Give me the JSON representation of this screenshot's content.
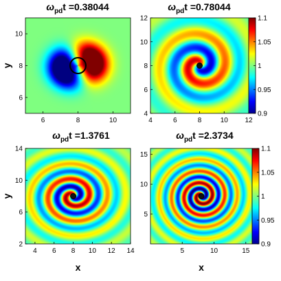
{
  "chart_data": [
    {
      "type": "heatmap",
      "title": "ω_pd t =0.38044",
      "title_parts": {
        "omega": "ω",
        "sub": "pd",
        "rest": "t =0.38044"
      },
      "xlabel": "",
      "ylabel": "y",
      "xlim": [
        5,
        11
      ],
      "ylim": [
        5,
        11
      ],
      "x_ticks": [
        "6",
        "8",
        "10"
      ],
      "x_tick_values": [
        6,
        8,
        10
      ],
      "y_ticks": [
        "6",
        "8",
        "10"
      ],
      "y_tick_values": [
        6,
        8,
        10
      ],
      "center": [
        8,
        8
      ],
      "pattern": "dipole",
      "spiral_turns": 0,
      "core_ring": true,
      "colorbar": null
    },
    {
      "type": "heatmap",
      "title": "ω_pd t =0.78044",
      "title_parts": {
        "omega": "ω",
        "sub": "pd",
        "rest": "t =0.78044"
      },
      "xlabel": "",
      "ylabel": "",
      "xlim": [
        4,
        12
      ],
      "ylim": [
        4,
        12
      ],
      "x_ticks": [
        "4",
        "6",
        "8",
        "10",
        "12"
      ],
      "x_tick_values": [
        4,
        6,
        8,
        10,
        12
      ],
      "y_ticks": [
        "4",
        "6",
        "8",
        "10",
        "12"
      ],
      "y_tick_values": [
        4,
        6,
        8,
        10,
        12
      ],
      "center": [
        8,
        8
      ],
      "pattern": "spiral",
      "spiral_turns": 1,
      "core_ring": true,
      "colorbar": {
        "range": [
          0.9,
          1.1
        ],
        "ticks": [
          "1.1",
          "1.05",
          "1",
          "0.95",
          "0.9"
        ],
        "tick_values": [
          1.1,
          1.05,
          1.0,
          0.95,
          0.9
        ]
      }
    },
    {
      "type": "heatmap",
      "title": "ω_pd t =1.3761",
      "title_parts": {
        "omega": "ω",
        "sub": "pd",
        "rest": "t =1.3761"
      },
      "xlabel": "x",
      "ylabel": "y",
      "xlim": [
        3,
        14
      ],
      "ylim": [
        2,
        14
      ],
      "x_ticks": [
        "4",
        "6",
        "8",
        "10",
        "12",
        "14"
      ],
      "x_tick_values": [
        4,
        6,
        8,
        10,
        12,
        14
      ],
      "y_ticks": [
        "2",
        "6",
        "10",
        "14"
      ],
      "y_tick_values": [
        2,
        6,
        10,
        14
      ],
      "center": [
        8,
        8
      ],
      "pattern": "spiral",
      "spiral_turns": 2,
      "core_ring": true,
      "colorbar": null
    },
    {
      "type": "heatmap",
      "title": "ω_pd t =2.3734",
      "title_parts": {
        "omega": "ω",
        "sub": "pd",
        "rest": "t =2.3734"
      },
      "xlabel": "x",
      "ylabel": "",
      "xlim": [
        0,
        16
      ],
      "ylim": [
        0,
        16
      ],
      "x_ticks": [
        "5",
        "10",
        "15"
      ],
      "x_tick_values": [
        5,
        10,
        15
      ],
      "y_ticks": [
        "5",
        "10",
        "15"
      ],
      "y_tick_values": [
        5,
        10,
        15
      ],
      "center": [
        8,
        8
      ],
      "pattern": "spiral",
      "spiral_turns": 3,
      "core_ring": true,
      "colorbar": {
        "range": [
          0.9,
          1.1
        ],
        "ticks": [
          "1.1",
          "1.05",
          "1",
          "0.95",
          "0.9"
        ],
        "tick_values": [
          1.1,
          1.05,
          1.0,
          0.95,
          0.9
        ]
      }
    }
  ]
}
